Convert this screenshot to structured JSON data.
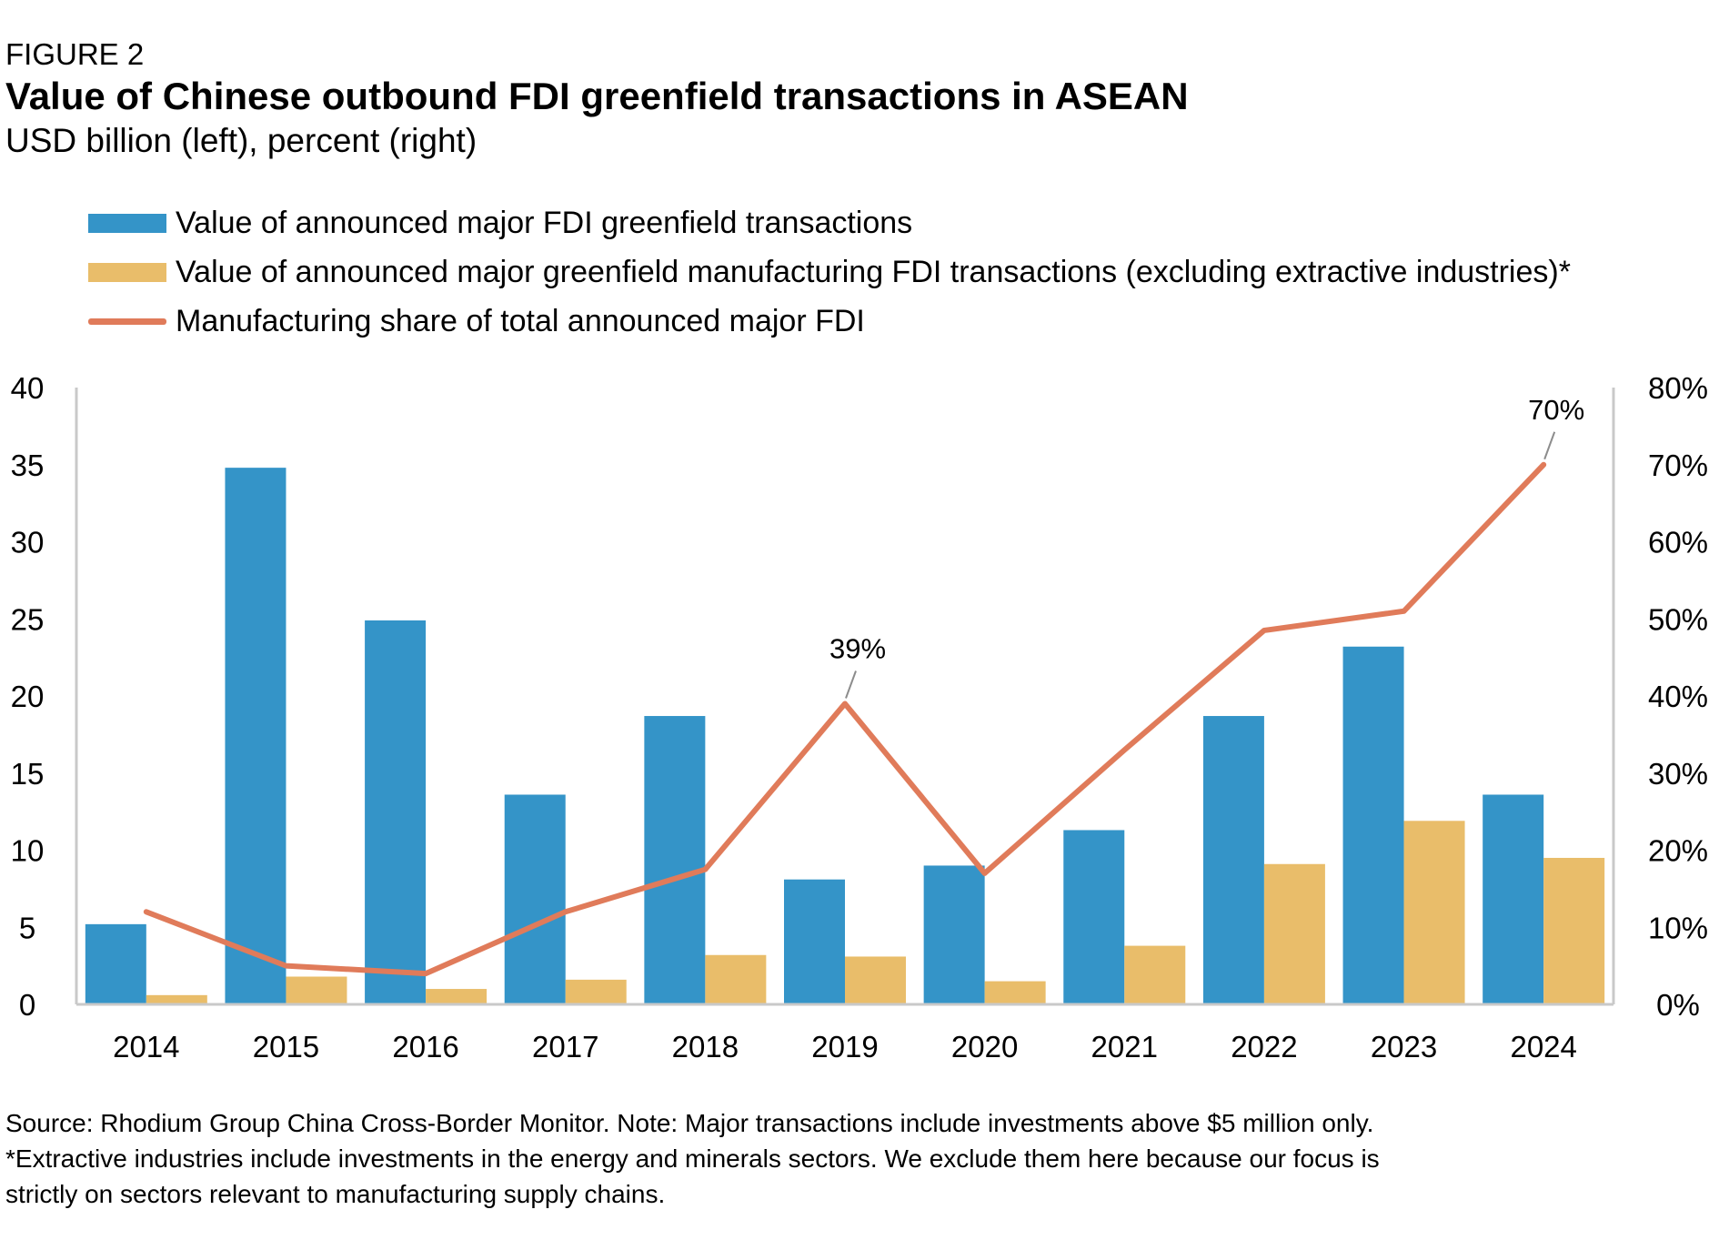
{
  "header": {
    "figure_label": "FIGURE 2",
    "title": "Value of Chinese outbound FDI greenfield transactions in ASEAN",
    "subtitle": "USD billion (left), percent (right)"
  },
  "legend": {
    "items": [
      {
        "label": "Value of announced major FDI greenfield transactions",
        "color": "#3494c8",
        "kind": "bar"
      },
      {
        "label": "Value of announced major greenfield manufacturing FDI transactions (excluding extractive industries)*",
        "color": "#e9bd6a",
        "kind": "bar"
      },
      {
        "label": "Manufacturing share of total announced major FDI",
        "color": "#e07b5a",
        "kind": "line"
      }
    ]
  },
  "chart_data": {
    "type": "bar",
    "categories": [
      "2014",
      "2015",
      "2016",
      "2017",
      "2018",
      "2019",
      "2020",
      "2021",
      "2022",
      "2023",
      "2024"
    ],
    "series": [
      {
        "name": "Value of announced major FDI greenfield transactions",
        "type": "bar",
        "axis": "left",
        "color": "#3494c8",
        "values": [
          5.2,
          34.8,
          24.9,
          13.6,
          18.7,
          8.1,
          9.0,
          11.3,
          18.7,
          23.2,
          13.6
        ]
      },
      {
        "name": "Value of announced major greenfield manufacturing FDI transactions (excluding extractive industries)*",
        "type": "bar",
        "axis": "left",
        "color": "#e9bd6a",
        "values": [
          0.6,
          1.8,
          1.0,
          1.6,
          3.2,
          3.1,
          1.5,
          3.8,
          9.1,
          11.9,
          9.5
        ]
      },
      {
        "name": "Manufacturing share of total announced major FDI",
        "type": "line",
        "axis": "right",
        "color": "#e07b5a",
        "values": [
          12,
          5,
          4,
          12,
          17.5,
          39,
          17,
          33,
          48.5,
          51,
          70
        ]
      }
    ],
    "left_axis": {
      "ylim": [
        0,
        40
      ],
      "ticks": [
        "0",
        "5",
        "10",
        "15",
        "20",
        "25",
        "30",
        "35",
        "40"
      ]
    },
    "right_axis": {
      "ylim": [
        0,
        80
      ],
      "ticks": [
        "0%",
        "10%",
        "20%",
        "30%",
        "40%",
        "50%",
        "60%",
        "70%",
        "80%"
      ]
    },
    "annotations": [
      {
        "category": "2019",
        "text": "39%"
      },
      {
        "category": "2024",
        "text": "70%"
      }
    ],
    "grid": false,
    "legend_position": "top-left"
  },
  "footer": {
    "line1": "Source: Rhodium Group China Cross-Border Monitor. Note: Major transactions include investments above $5 million only.",
    "line2": "*Extractive industries include investments in the energy and minerals sectors. We exclude them here because our focus is",
    "line3": "strictly on sectors relevant to manufacturing supply chains."
  }
}
